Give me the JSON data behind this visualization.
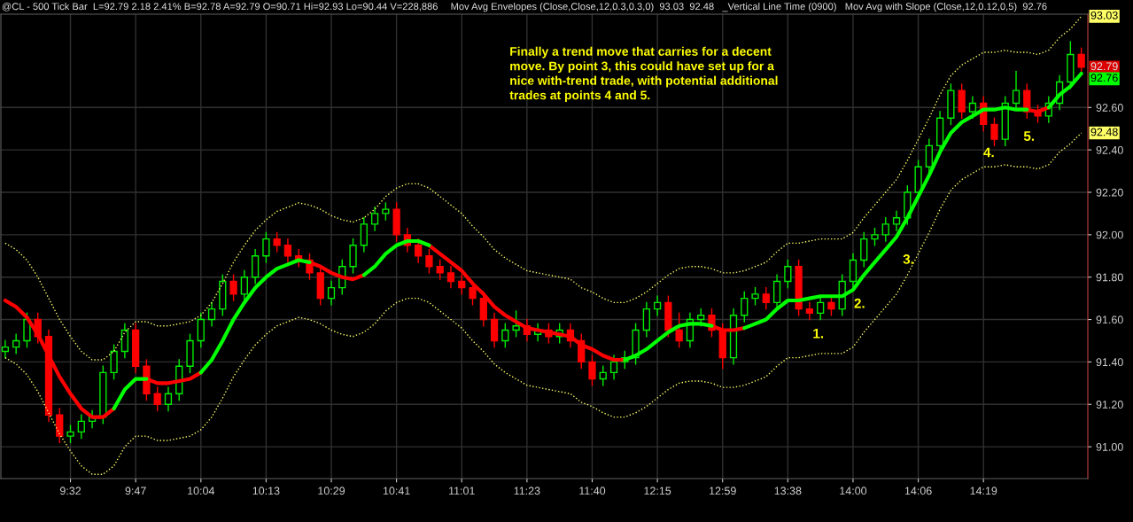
{
  "chart_data": {
    "type": "candlestick",
    "title": "@CL - 500 Tick Bar  L=92.79 2.18 2.41% B=92.78 A=92.79 O=90.71 Hi=92.93 Lo=90.44 V=228,886",
    "subtitle": "Mov Avg Envelopes (Close,Close,12,0.3,0.3,0)  93.03  92.48   _Vertical Line Time (0900)   Mov Avg with Slope (Close,12,0.12,0,5)  92.76",
    "categories": [
      null,
      null,
      null,
      null,
      null,
      null,
      "9:32",
      null,
      null,
      null,
      null,
      null,
      "9:47",
      null,
      null,
      null,
      null,
      null,
      "10:04",
      null,
      null,
      null,
      null,
      null,
      "10:13",
      null,
      null,
      null,
      null,
      null,
      "10:29",
      null,
      null,
      null,
      null,
      null,
      "10:41",
      null,
      null,
      null,
      null,
      null,
      "11:01",
      null,
      null,
      null,
      null,
      null,
      "11:23",
      null,
      null,
      null,
      null,
      null,
      "11:40",
      null,
      null,
      null,
      null,
      null,
      "12:15",
      null,
      null,
      null,
      null,
      null,
      "12:59",
      null,
      null,
      null,
      null,
      null,
      "13:38",
      null,
      null,
      null,
      null,
      null,
      "14:00",
      null,
      null,
      null,
      null,
      null,
      "14:06",
      null,
      null,
      null,
      null,
      null,
      "14:19",
      null,
      null,
      null,
      null,
      null,
      null,
      null,
      null,
      null
    ],
    "ohlc": [
      [
        91.45,
        91.5,
        91.42,
        91.47
      ],
      [
        91.47,
        91.53,
        91.44,
        91.5
      ],
      [
        91.5,
        91.63,
        91.47,
        91.6
      ],
      [
        91.6,
        91.63,
        91.49,
        91.52
      ],
      [
        91.52,
        91.55,
        91.12,
        91.15
      ],
      [
        91.15,
        91.18,
        91.02,
        91.05
      ],
      [
        91.05,
        91.1,
        91.02,
        91.07
      ],
      [
        91.07,
        91.15,
        91.04,
        91.12
      ],
      [
        91.12,
        91.17,
        91.09,
        91.14
      ],
      [
        91.14,
        91.38,
        91.11,
        91.35
      ],
      [
        91.35,
        91.48,
        91.32,
        91.45
      ],
      [
        91.45,
        91.58,
        91.42,
        91.55
      ],
      [
        91.55,
        91.58,
        91.35,
        91.38
      ],
      [
        91.38,
        91.41,
        91.22,
        91.25
      ],
      [
        91.25,
        91.28,
        91.17,
        91.2
      ],
      [
        91.2,
        91.28,
        91.17,
        91.25
      ],
      [
        91.25,
        91.41,
        91.22,
        91.38
      ],
      [
        91.38,
        91.53,
        91.35,
        91.5
      ],
      [
        91.5,
        91.63,
        91.47,
        91.6
      ],
      [
        91.6,
        91.68,
        91.57,
        91.65
      ],
      [
        91.65,
        91.81,
        91.62,
        91.78
      ],
      [
        91.78,
        91.81,
        91.69,
        91.72
      ],
      [
        91.72,
        91.83,
        91.69,
        91.8
      ],
      [
        91.8,
        91.93,
        91.77,
        91.9
      ],
      [
        91.9,
        92.01,
        91.87,
        91.98
      ],
      [
        91.98,
        92.01,
        91.92,
        91.95
      ],
      [
        91.95,
        91.98,
        91.87,
        91.9
      ],
      [
        91.9,
        91.93,
        91.85,
        91.88
      ],
      [
        91.88,
        91.91,
        91.79,
        91.82
      ],
      [
        91.82,
        91.85,
        91.67,
        91.7
      ],
      [
        91.7,
        91.78,
        91.67,
        91.75
      ],
      [
        91.75,
        91.88,
        91.72,
        91.85
      ],
      [
        91.85,
        91.98,
        91.82,
        91.95
      ],
      [
        91.95,
        92.08,
        91.92,
        92.05
      ],
      [
        92.05,
        92.13,
        92.02,
        92.1
      ],
      [
        92.1,
        92.15,
        92.07,
        92.12
      ],
      [
        92.12,
        92.15,
        91.97,
        92.0
      ],
      [
        92.0,
        92.03,
        91.92,
        91.95
      ],
      [
        91.95,
        91.98,
        91.87,
        91.9
      ],
      [
        91.9,
        91.93,
        91.82,
        91.85
      ],
      [
        91.85,
        91.88,
        91.79,
        91.82
      ],
      [
        91.82,
        91.85,
        91.75,
        91.78
      ],
      [
        91.78,
        91.81,
        91.72,
        91.75
      ],
      [
        91.75,
        91.78,
        91.67,
        91.7
      ],
      [
        91.7,
        91.73,
        91.57,
        91.6
      ],
      [
        91.6,
        91.63,
        91.47,
        91.5
      ],
      [
        91.5,
        91.58,
        91.47,
        91.55
      ],
      [
        91.55,
        91.64,
        91.52,
        91.57
      ],
      [
        91.57,
        91.6,
        91.5,
        91.53
      ],
      [
        91.53,
        91.58,
        91.5,
        91.55
      ],
      [
        91.55,
        91.58,
        91.49,
        91.52
      ],
      [
        91.52,
        91.58,
        91.49,
        91.55
      ],
      [
        91.55,
        91.58,
        91.47,
        91.5
      ],
      [
        91.5,
        91.53,
        91.37,
        91.4
      ],
      [
        91.4,
        91.43,
        91.29,
        91.32
      ],
      [
        91.32,
        91.38,
        91.29,
        91.35
      ],
      [
        91.35,
        91.43,
        91.32,
        91.4
      ],
      [
        91.4,
        91.45,
        91.37,
        91.42
      ],
      [
        91.42,
        91.58,
        91.39,
        91.55
      ],
      [
        91.55,
        91.68,
        91.52,
        91.65
      ],
      [
        91.65,
        91.71,
        91.62,
        91.68
      ],
      [
        91.68,
        91.71,
        91.52,
        91.55
      ],
      [
        91.55,
        91.63,
        91.47,
        91.5
      ],
      [
        91.5,
        91.63,
        91.47,
        91.6
      ],
      [
        91.6,
        91.65,
        91.57,
        91.62
      ],
      [
        91.62,
        91.65,
        91.52,
        91.55
      ],
      [
        91.55,
        91.58,
        91.37,
        91.42
      ],
      [
        91.42,
        91.65,
        91.39,
        91.62
      ],
      [
        91.62,
        91.73,
        91.59,
        91.7
      ],
      [
        91.7,
        91.75,
        91.67,
        91.72
      ],
      [
        91.72,
        91.75,
        91.65,
        91.68
      ],
      [
        91.68,
        91.81,
        91.65,
        91.78
      ],
      [
        91.78,
        91.88,
        91.75,
        91.85
      ],
      [
        91.85,
        91.88,
        91.62,
        91.65
      ],
      [
        91.65,
        91.68,
        91.6,
        91.63
      ],
      [
        91.63,
        91.71,
        91.6,
        91.68
      ],
      [
        91.68,
        91.71,
        91.62,
        91.65
      ],
      [
        91.65,
        91.81,
        91.62,
        91.78
      ],
      [
        91.78,
        91.91,
        91.75,
        91.88
      ],
      [
        91.88,
        92.01,
        91.85,
        91.98
      ],
      [
        91.98,
        92.03,
        91.95,
        92.0
      ],
      [
        92.0,
        92.08,
        91.97,
        92.05
      ],
      [
        92.05,
        92.11,
        92.02,
        92.08
      ],
      [
        92.08,
        92.23,
        92.05,
        92.2
      ],
      [
        92.2,
        92.35,
        92.17,
        92.32
      ],
      [
        92.32,
        92.45,
        92.29,
        92.42
      ],
      [
        92.42,
        92.58,
        92.39,
        92.55
      ],
      [
        92.55,
        92.71,
        92.52,
        92.68
      ],
      [
        92.68,
        92.71,
        92.55,
        92.58
      ],
      [
        92.58,
        92.65,
        92.55,
        92.62
      ],
      [
        92.62,
        92.65,
        92.49,
        92.52
      ],
      [
        92.52,
        92.55,
        92.42,
        92.45
      ],
      [
        92.45,
        92.65,
        92.42,
        92.62
      ],
      [
        92.62,
        92.77,
        92.59,
        92.68
      ],
      [
        92.68,
        92.71,
        92.55,
        92.58
      ],
      [
        92.58,
        92.61,
        92.53,
        92.56
      ],
      [
        92.56,
        92.65,
        92.53,
        92.62
      ],
      [
        92.62,
        92.75,
        92.59,
        92.72
      ],
      [
        92.72,
        92.91,
        92.69,
        92.85
      ],
      [
        92.85,
        92.88,
        92.76,
        92.79
      ]
    ],
    "series": [
      {
        "type": "line",
        "color": "#ffff66",
        "line_style": "dotted",
        "values": [
          91.96,
          91.93,
          91.88,
          91.8,
          91.7,
          91.6,
          91.52,
          91.45,
          91.41,
          91.41,
          91.45,
          91.54,
          91.59,
          91.59,
          91.57,
          91.57,
          91.58,
          91.59,
          91.62,
          91.68,
          91.77,
          91.87,
          91.95,
          92.02,
          92.07,
          92.11,
          92.13,
          92.15,
          92.14,
          92.12,
          92.09,
          92.07,
          92.06,
          92.08,
          92.12,
          92.18,
          92.22,
          92.24,
          92.24,
          92.22,
          92.18,
          92.14,
          92.1,
          92.04,
          91.99,
          91.93,
          91.89,
          91.86,
          91.83,
          91.82,
          91.81,
          91.8,
          91.79,
          91.75,
          91.73,
          91.7,
          91.68,
          91.68,
          91.7,
          91.73,
          91.77,
          91.81,
          91.84,
          91.85,
          91.85,
          91.84,
          91.82,
          91.82,
          91.83,
          91.85,
          91.87,
          91.92,
          91.96,
          91.96,
          91.97,
          91.98,
          91.98,
          91.98,
          92.01,
          92.08,
          92.14,
          92.2,
          92.26,
          92.35,
          92.45,
          92.55,
          92.66,
          92.75,
          92.8,
          92.83,
          92.86,
          92.86,
          92.87,
          92.86,
          92.86,
          92.85,
          92.87,
          92.93,
          92.97,
          93.03
        ],
        "value_labels": [
          null,
          null,
          null,
          null,
          null,
          null,
          null,
          null,
          null,
          null,
          null,
          null,
          null,
          null,
          null,
          null,
          null,
          null,
          null,
          null,
          null,
          null,
          null,
          null,
          null,
          null,
          null,
          null,
          null,
          null,
          null,
          null,
          null,
          null,
          null,
          null,
          null,
          null,
          null,
          null,
          null,
          null,
          null,
          null,
          null,
          null,
          null,
          null,
          null,
          null,
          null,
          null,
          null,
          null,
          null,
          null,
          null,
          null,
          null,
          null,
          null,
          null,
          null,
          null,
          null,
          null,
          null,
          null,
          null,
          null,
          null,
          null,
          null,
          null,
          null,
          null,
          null,
          null,
          null,
          null,
          null,
          null,
          null,
          null,
          null,
          null,
          null,
          null,
          null,
          null,
          null,
          null,
          null,
          null,
          null,
          null,
          null,
          null,
          null,
          "93.03"
        ]
      },
      {
        "type": "line",
        "color": "#ffff66",
        "line_style": "dotted",
        "values": [
          91.42,
          91.39,
          91.34,
          91.26,
          91.16,
          91.06,
          90.98,
          90.91,
          90.87,
          90.87,
          90.91,
          91.0,
          91.05,
          91.05,
          91.03,
          91.03,
          91.04,
          91.05,
          91.08,
          91.14,
          91.23,
          91.33,
          91.41,
          91.48,
          91.53,
          91.57,
          91.59,
          91.61,
          91.6,
          91.58,
          91.55,
          91.53,
          91.52,
          91.54,
          91.58,
          91.64,
          91.68,
          91.7,
          91.7,
          91.68,
          91.64,
          91.6,
          91.56,
          91.5,
          91.45,
          91.39,
          91.35,
          91.32,
          91.29,
          91.28,
          91.27,
          91.26,
          91.25,
          91.21,
          91.19,
          91.16,
          91.14,
          91.14,
          91.16,
          91.19,
          91.23,
          91.27,
          91.3,
          91.31,
          91.31,
          91.3,
          91.28,
          91.28,
          91.29,
          91.31,
          91.33,
          91.38,
          91.42,
          91.42,
          91.43,
          91.44,
          91.44,
          91.44,
          91.47,
          91.54,
          91.6,
          91.66,
          91.72,
          91.81,
          91.91,
          92.01,
          92.12,
          92.21,
          92.26,
          92.29,
          92.32,
          92.32,
          92.33,
          92.32,
          92.32,
          92.31,
          92.33,
          92.39,
          92.43,
          92.48
        ],
        "value_labels": [
          null,
          null,
          null,
          null,
          null,
          null,
          null,
          null,
          null,
          null,
          null,
          null,
          null,
          null,
          null,
          null,
          null,
          null,
          null,
          null,
          null,
          null,
          null,
          null,
          null,
          null,
          null,
          null,
          null,
          null,
          null,
          null,
          null,
          null,
          null,
          null,
          null,
          null,
          null,
          null,
          null,
          null,
          null,
          null,
          null,
          null,
          null,
          null,
          null,
          null,
          null,
          null,
          null,
          null,
          null,
          null,
          null,
          null,
          null,
          null,
          null,
          null,
          null,
          null,
          null,
          null,
          null,
          null,
          null,
          null,
          null,
          null,
          null,
          null,
          null,
          null,
          null,
          null,
          null,
          null,
          null,
          null,
          null,
          null,
          null,
          null,
          null,
          null,
          null,
          null,
          null,
          null,
          null,
          null,
          null,
          null,
          null,
          null,
          null,
          "92.48"
        ]
      },
      {
        "type": "line",
        "color": "#ff0000",
        "line_style": "solid",
        "values": [
          91.69,
          91.66,
          91.61,
          91.53,
          91.43,
          91.33,
          91.25,
          91.18,
          91.14,
          91.14,
          91.18,
          null,
          null,
          91.32,
          91.3,
          91.3,
          91.31,
          91.32,
          91.35,
          null,
          null,
          null,
          null,
          null,
          null,
          null,
          null,
          null,
          91.87,
          91.85,
          91.82,
          91.8,
          91.79,
          91.81,
          null,
          null,
          null,
          null,
          null,
          91.95,
          91.91,
          91.87,
          91.83,
          91.77,
          91.72,
          91.66,
          91.62,
          91.59,
          91.56,
          91.55,
          91.54,
          91.53,
          91.52,
          91.48,
          91.46,
          91.43,
          91.41,
          91.41,
          null,
          null,
          null,
          null,
          null,
          null,
          null,
          91.57,
          91.55,
          91.55,
          91.56,
          null,
          null,
          null,
          null,
          null,
          null,
          null,
          null,
          null,
          null,
          null,
          null,
          null,
          null,
          null,
          null,
          null,
          null,
          null,
          null,
          null,
          null,
          null,
          null,
          null,
          92.59,
          92.58,
          92.6,
          null,
          null,
          null
        ]
      },
      {
        "type": "line",
        "color": "#00ff00",
        "line_style": "solid",
        "values": [
          null,
          null,
          null,
          null,
          null,
          null,
          null,
          null,
          null,
          null,
          91.18,
          91.27,
          91.32,
          91.32,
          null,
          null,
          null,
          null,
          91.35,
          91.41,
          91.5,
          91.6,
          91.68,
          91.75,
          91.8,
          91.84,
          91.86,
          91.88,
          91.87,
          null,
          null,
          null,
          null,
          91.81,
          91.85,
          91.91,
          91.95,
          91.97,
          91.97,
          91.95,
          null,
          null,
          null,
          null,
          null,
          null,
          null,
          null,
          null,
          null,
          null,
          null,
          null,
          null,
          null,
          null,
          null,
          91.41,
          91.43,
          91.46,
          91.5,
          91.54,
          91.57,
          91.58,
          91.58,
          91.57,
          null,
          null,
          91.56,
          91.58,
          91.6,
          91.65,
          91.69,
          91.69,
          91.7,
          91.71,
          91.71,
          91.71,
          91.74,
          91.81,
          91.87,
          91.93,
          91.99,
          92.08,
          92.18,
          92.28,
          92.39,
          92.48,
          92.53,
          92.56,
          92.59,
          92.59,
          92.6,
          92.59,
          92.59,
          null,
          92.6,
          92.66,
          92.7,
          92.76
        ],
        "value_labels": [
          null,
          null,
          null,
          null,
          null,
          null,
          null,
          null,
          null,
          null,
          null,
          null,
          null,
          null,
          null,
          null,
          null,
          null,
          null,
          null,
          null,
          null,
          null,
          null,
          null,
          null,
          null,
          null,
          null,
          null,
          null,
          null,
          null,
          null,
          null,
          null,
          null,
          null,
          null,
          null,
          null,
          null,
          null,
          null,
          null,
          null,
          null,
          null,
          null,
          null,
          null,
          null,
          null,
          null,
          null,
          null,
          null,
          null,
          null,
          null,
          null,
          null,
          null,
          null,
          null,
          null,
          null,
          null,
          null,
          null,
          null,
          null,
          null,
          null,
          null,
          null,
          null,
          null,
          null,
          null,
          null,
          null,
          null,
          null,
          null,
          null,
          null,
          null,
          null,
          null,
          null,
          null,
          null,
          null,
          null,
          null,
          null,
          null,
          null,
          "92.76"
        ]
      }
    ],
    "ylim": [
      90.85,
      93.04
    ],
    "yticks": [
      {
        "value": 91.0,
        "label": "91.00"
      },
      {
        "value": 91.2,
        "label": "91.20"
      },
      {
        "value": 91.4,
        "label": "91.40"
      },
      {
        "value": 91.6,
        "label": "91.60"
      },
      {
        "value": 91.8,
        "label": "91.80"
      },
      {
        "value": 92.0,
        "label": "92.00"
      },
      {
        "value": 92.2,
        "label": "92.20"
      },
      {
        "value": 92.4,
        "label": "92.40"
      },
      {
        "value": 92.6,
        "label": "92.60"
      }
    ],
    "grid": true,
    "annotations": [
      "Finally a trend move that carries for a decent\nmove. By point 3, this could have set up for a\nnice with-trend trade, with potential additional\ntrades at points 4 and 5.",
      "1.",
      "2.",
      "3.",
      "4.",
      "5.",
      {
        "text": "92.79",
        "y": 92.79
      }
    ]
  }
}
